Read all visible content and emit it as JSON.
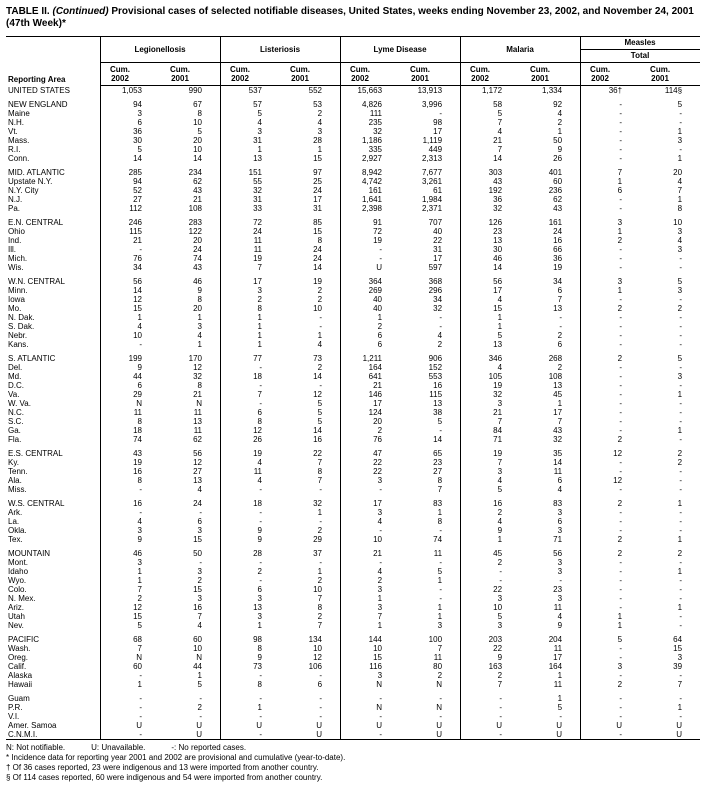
{
  "title": {
    "label": "TABLE II.",
    "continued": "(Continued)",
    "rest": "Provisional cases of selected notifiable diseases, United States, weeks ending November 23, 2002, and November 24, 2001 (47th Week)*"
  },
  "header": {
    "reporting_area": "Reporting Area",
    "groups": [
      "Legionellosis",
      "Listeriosis",
      "Lyme Disease",
      "Malaria"
    ],
    "measles": "Measles",
    "total": "Total",
    "cum_label": "Cum.",
    "years": [
      "2002",
      "2001"
    ]
  },
  "sections": [
    {
      "rows": [
        {
          "area": "UNITED STATES",
          "values": [
            "1,053",
            "990",
            "537",
            "552",
            "15,663",
            "13,913",
            "1,172",
            "1,334",
            "36†",
            "114§"
          ]
        }
      ]
    },
    {
      "rows": [
        {
          "area": "NEW ENGLAND",
          "values": [
            "94",
            "67",
            "57",
            "53",
            "4,826",
            "3,996",
            "58",
            "92",
            "-",
            "5"
          ]
        },
        {
          "area": "Maine",
          "values": [
            "3",
            "8",
            "5",
            "2",
            "111",
            "-",
            "5",
            "4",
            "-",
            "-"
          ]
        },
        {
          "area": "N.H.",
          "values": [
            "6",
            "10",
            "4",
            "4",
            "235",
            "98",
            "7",
            "2",
            "-",
            "-"
          ]
        },
        {
          "area": "Vt.",
          "values": [
            "36",
            "5",
            "3",
            "3",
            "32",
            "17",
            "4",
            "1",
            "-",
            "1"
          ]
        },
        {
          "area": "Mass.",
          "values": [
            "30",
            "20",
            "31",
            "28",
            "1,186",
            "1,119",
            "21",
            "50",
            "-",
            "3"
          ]
        },
        {
          "area": "R.I.",
          "values": [
            "5",
            "10",
            "1",
            "1",
            "335",
            "449",
            "7",
            "9",
            "-",
            "-"
          ]
        },
        {
          "area": "Conn.",
          "values": [
            "14",
            "14",
            "13",
            "15",
            "2,927",
            "2,313",
            "14",
            "26",
            "-",
            "1"
          ]
        }
      ]
    },
    {
      "rows": [
        {
          "area": "MID. ATLANTIC",
          "values": [
            "285",
            "234",
            "151",
            "97",
            "8,942",
            "7,677",
            "303",
            "401",
            "7",
            "20"
          ]
        },
        {
          "area": "Upstate N.Y.",
          "values": [
            "94",
            "62",
            "55",
            "25",
            "4,742",
            "3,261",
            "43",
            "60",
            "1",
            "4"
          ]
        },
        {
          "area": "N.Y. City",
          "values": [
            "52",
            "43",
            "32",
            "24",
            "161",
            "61",
            "192",
            "236",
            "6",
            "7"
          ]
        },
        {
          "area": "N.J.",
          "values": [
            "27",
            "21",
            "31",
            "17",
            "1,641",
            "1,984",
            "36",
            "62",
            "-",
            "1"
          ]
        },
        {
          "area": "Pa.",
          "values": [
            "112",
            "108",
            "33",
            "31",
            "2,398",
            "2,371",
            "32",
            "43",
            "-",
            "8"
          ]
        }
      ]
    },
    {
      "rows": [
        {
          "area": "E.N. CENTRAL",
          "values": [
            "246",
            "283",
            "72",
            "85",
            "91",
            "707",
            "126",
            "161",
            "3",
            "10"
          ]
        },
        {
          "area": "Ohio",
          "values": [
            "115",
            "122",
            "24",
            "15",
            "72",
            "40",
            "23",
            "24",
            "1",
            "3"
          ]
        },
        {
          "area": "Ind.",
          "values": [
            "21",
            "20",
            "11",
            "8",
            "19",
            "22",
            "13",
            "16",
            "2",
            "4"
          ]
        },
        {
          "area": "Ill.",
          "values": [
            "-",
            "24",
            "11",
            "24",
            "-",
            "31",
            "30",
            "66",
            "-",
            "3"
          ]
        },
        {
          "area": "Mich.",
          "values": [
            "76",
            "74",
            "19",
            "24",
            "-",
            "17",
            "46",
            "36",
            "-",
            "-"
          ]
        },
        {
          "area": "Wis.",
          "values": [
            "34",
            "43",
            "7",
            "14",
            "U",
            "597",
            "14",
            "19",
            "-",
            "-"
          ]
        }
      ]
    },
    {
      "rows": [
        {
          "area": "W.N. CENTRAL",
          "values": [
            "56",
            "46",
            "17",
            "19",
            "364",
            "368",
            "56",
            "34",
            "3",
            "5"
          ]
        },
        {
          "area": "Minn.",
          "values": [
            "14",
            "9",
            "3",
            "2",
            "269",
            "296",
            "17",
            "6",
            "1",
            "3"
          ]
        },
        {
          "area": "Iowa",
          "values": [
            "12",
            "8",
            "2",
            "2",
            "40",
            "34",
            "4",
            "7",
            "-",
            "-"
          ]
        },
        {
          "area": "Mo.",
          "values": [
            "15",
            "20",
            "8",
            "10",
            "40",
            "32",
            "15",
            "13",
            "2",
            "2"
          ]
        },
        {
          "area": "N. Dak.",
          "values": [
            "1",
            "1",
            "1",
            "-",
            "1",
            "-",
            "1",
            "-",
            "-",
            "-"
          ]
        },
        {
          "area": "S. Dak.",
          "values": [
            "4",
            "3",
            "1",
            "-",
            "2",
            "-",
            "1",
            "-",
            "-",
            "-"
          ]
        },
        {
          "area": "Nebr.",
          "values": [
            "10",
            "4",
            "1",
            "1",
            "6",
            "4",
            "5",
            "2",
            "-",
            "-"
          ]
        },
        {
          "area": "Kans.",
          "values": [
            "-",
            "1",
            "1",
            "4",
            "6",
            "2",
            "13",
            "6",
            "-",
            "-"
          ]
        }
      ]
    },
    {
      "rows": [
        {
          "area": "S. ATLANTIC",
          "values": [
            "199",
            "170",
            "77",
            "73",
            "1,211",
            "906",
            "346",
            "268",
            "2",
            "5"
          ]
        },
        {
          "area": "Del.",
          "values": [
            "9",
            "12",
            "-",
            "2",
            "164",
            "152",
            "4",
            "2",
            "-",
            "-"
          ]
        },
        {
          "area": "Md.",
          "values": [
            "44",
            "32",
            "18",
            "14",
            "641",
            "553",
            "105",
            "108",
            "-",
            "3"
          ]
        },
        {
          "area": "D.C.",
          "values": [
            "6",
            "8",
            "-",
            "-",
            "21",
            "16",
            "19",
            "13",
            "-",
            "-"
          ]
        },
        {
          "area": "Va.",
          "values": [
            "29",
            "21",
            "7",
            "12",
            "146",
            "115",
            "32",
            "45",
            "-",
            "1"
          ]
        },
        {
          "area": "W. Va.",
          "values": [
            "N",
            "N",
            "-",
            "5",
            "17",
            "13",
            "3",
            "1",
            "-",
            "-"
          ]
        },
        {
          "area": "N.C.",
          "values": [
            "11",
            "11",
            "6",
            "5",
            "124",
            "38",
            "21",
            "17",
            "-",
            "-"
          ]
        },
        {
          "area": "S.C.",
          "values": [
            "8",
            "13",
            "8",
            "5",
            "20",
            "5",
            "7",
            "7",
            "-",
            "-"
          ]
        },
        {
          "area": "Ga.",
          "values": [
            "18",
            "11",
            "12",
            "14",
            "2",
            "-",
            "84",
            "43",
            "-",
            "1"
          ]
        },
        {
          "area": "Fla.",
          "values": [
            "74",
            "62",
            "26",
            "16",
            "76",
            "14",
            "71",
            "32",
            "2",
            "-"
          ]
        }
      ]
    },
    {
      "rows": [
        {
          "area": "E.S. CENTRAL",
          "values": [
            "43",
            "56",
            "19",
            "22",
            "47",
            "65",
            "19",
            "35",
            "12",
            "2"
          ]
        },
        {
          "area": "Ky.",
          "values": [
            "19",
            "12",
            "4",
            "7",
            "22",
            "23",
            "7",
            "14",
            "-",
            "2"
          ]
        },
        {
          "area": "Tenn.",
          "values": [
            "16",
            "27",
            "11",
            "8",
            "22",
            "27",
            "3",
            "11",
            "-",
            "-"
          ]
        },
        {
          "area": "Ala.",
          "values": [
            "8",
            "13",
            "4",
            "7",
            "3",
            "8",
            "4",
            "6",
            "12",
            "-"
          ]
        },
        {
          "area": "Miss.",
          "values": [
            "-",
            "4",
            "-",
            "-",
            "-",
            "7",
            "5",
            "4",
            "-",
            "-"
          ]
        }
      ]
    },
    {
      "rows": [
        {
          "area": "W.S. CENTRAL",
          "values": [
            "16",
            "24",
            "18",
            "32",
            "17",
            "83",
            "16",
            "83",
            "2",
            "1"
          ]
        },
        {
          "area": "Ark.",
          "values": [
            "-",
            "-",
            "-",
            "1",
            "3",
            "1",
            "2",
            "3",
            "-",
            "-"
          ]
        },
        {
          "area": "La.",
          "values": [
            "4",
            "6",
            "-",
            "-",
            "4",
            "8",
            "4",
            "6",
            "-",
            "-"
          ]
        },
        {
          "area": "Okla.",
          "values": [
            "3",
            "3",
            "9",
            "2",
            "-",
            "-",
            "9",
            "3",
            "-",
            "-"
          ]
        },
        {
          "area": "Tex.",
          "values": [
            "9",
            "15",
            "9",
            "29",
            "10",
            "74",
            "1",
            "71",
            "2",
            "1"
          ]
        }
      ]
    },
    {
      "rows": [
        {
          "area": "MOUNTAIN",
          "values": [
            "46",
            "50",
            "28",
            "37",
            "21",
            "11",
            "45",
            "56",
            "2",
            "2"
          ]
        },
        {
          "area": "Mont.",
          "values": [
            "3",
            "-",
            "-",
            "-",
            "-",
            "-",
            "2",
            "3",
            "-",
            "-"
          ]
        },
        {
          "area": "Idaho",
          "values": [
            "1",
            "3",
            "2",
            "1",
            "4",
            "5",
            "-",
            "3",
            "-",
            "1"
          ]
        },
        {
          "area": "Wyo.",
          "values": [
            "1",
            "2",
            "-",
            "2",
            "2",
            "1",
            "-",
            "-",
            "-",
            "-"
          ]
        },
        {
          "area": "Colo.",
          "values": [
            "7",
            "15",
            "6",
            "10",
            "3",
            "-",
            "22",
            "23",
            "-",
            "-"
          ]
        },
        {
          "area": "N. Mex.",
          "values": [
            "2",
            "3",
            "3",
            "7",
            "1",
            "-",
            "3",
            "3",
            "-",
            "-"
          ]
        },
        {
          "area": "Ariz.",
          "values": [
            "12",
            "16",
            "13",
            "8",
            "3",
            "1",
            "10",
            "11",
            "-",
            "1"
          ]
        },
        {
          "area": "Utah",
          "values": [
            "15",
            "7",
            "3",
            "2",
            "7",
            "1",
            "5",
            "4",
            "1",
            "-"
          ]
        },
        {
          "area": "Nev.",
          "values": [
            "5",
            "4",
            "1",
            "7",
            "1",
            "3",
            "3",
            "9",
            "1",
            "-"
          ]
        }
      ]
    },
    {
      "rows": [
        {
          "area": "PACIFIC",
          "values": [
            "68",
            "60",
            "98",
            "134",
            "144",
            "100",
            "203",
            "204",
            "5",
            "64"
          ]
        },
        {
          "area": "Wash.",
          "values": [
            "7",
            "10",
            "8",
            "10",
            "10",
            "7",
            "22",
            "11",
            "-",
            "15"
          ]
        },
        {
          "area": "Oreg.",
          "values": [
            "N",
            "N",
            "9",
            "12",
            "15",
            "11",
            "9",
            "17",
            "-",
            "3"
          ]
        },
        {
          "area": "Calif.",
          "values": [
            "60",
            "44",
            "73",
            "106",
            "116",
            "80",
            "163",
            "164",
            "3",
            "39"
          ]
        },
        {
          "area": "Alaska",
          "values": [
            "-",
            "1",
            "-",
            "-",
            "3",
            "2",
            "2",
            "1",
            "-",
            "-"
          ]
        },
        {
          "area": "Hawaii",
          "values": [
            "1",
            "5",
            "8",
            "6",
            "N",
            "N",
            "7",
            "11",
            "2",
            "7"
          ]
        }
      ]
    },
    {
      "rows": [
        {
          "area": "Guam",
          "values": [
            "-",
            "-",
            "-",
            "-",
            "-",
            "-",
            "-",
            "1",
            "-",
            "-"
          ]
        },
        {
          "area": "P.R.",
          "values": [
            "-",
            "2",
            "1",
            "-",
            "N",
            "N",
            "-",
            "5",
            "-",
            "1"
          ]
        },
        {
          "area": "V.I.",
          "values": [
            "-",
            "-",
            "-",
            "-",
            "-",
            "-",
            "-",
            "-",
            "-",
            "-"
          ]
        },
        {
          "area": "Amer. Samoa",
          "values": [
            "U",
            "U",
            "U",
            "U",
            "U",
            "U",
            "U",
            "U",
            "U",
            "U"
          ]
        },
        {
          "area": "C.N.M.I.",
          "values": [
            "-",
            "U",
            "-",
            "U",
            "-",
            "U",
            "-",
            "U",
            "-",
            "U"
          ]
        }
      ]
    }
  ],
  "footnotes": {
    "legend": [
      "N: Not notifiable.",
      "U: Unavailable.",
      "-: No reported cases."
    ],
    "lines": [
      "* Incidence data for reporting year 2001 and 2002 are provisional and cumulative (year-to-date).",
      "† Of 36 cases reported, 23 were indigenous and 13 were imported from another country.",
      "§ Of 114 cases reported, 60 were indigenous and 54 were imported from another country."
    ]
  }
}
